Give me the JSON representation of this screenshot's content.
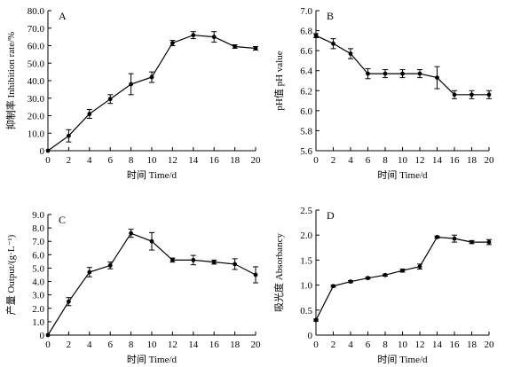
{
  "chart_data": [
    {
      "panel": "A",
      "type": "line",
      "xlabel": "时间  Time/d",
      "ylabel": "抑制率  Inhibition rate/%",
      "xlim": [
        0,
        20
      ],
      "ylim": [
        0,
        80
      ],
      "xticks": [
        0,
        2,
        4,
        6,
        8,
        10,
        12,
        14,
        16,
        18,
        20
      ],
      "yticks": [
        0,
        10,
        20,
        30,
        40,
        50,
        60,
        70,
        80
      ],
      "ytick_labels": [
        "0",
        "10.0",
        "20.0",
        "30.0",
        "40.0",
        "50.0",
        "60.0",
        "70.0",
        "80.0"
      ],
      "grid": false,
      "series": [
        {
          "x": [
            0,
            2,
            4,
            6,
            8,
            10,
            12,
            14,
            16,
            18,
            20
          ],
          "y": [
            0,
            8.5,
            21,
            29.5,
            38,
            42,
            61.5,
            66,
            65,
            59.5,
            58.5
          ],
          "err": [
            0,
            3.5,
            2.5,
            2.5,
            6,
            3,
            1.5,
            2,
            3,
            1,
            1
          ]
        }
      ]
    },
    {
      "panel": "B",
      "type": "line",
      "xlabel": "时间  Time/d",
      "ylabel": "pH值  pH value",
      "xlim": [
        0,
        20
      ],
      "ylim": [
        5.6,
        7.0
      ],
      "xticks": [
        0,
        2,
        4,
        6,
        8,
        10,
        12,
        14,
        16,
        18,
        20
      ],
      "yticks": [
        5.6,
        5.8,
        6.0,
        6.2,
        6.4,
        6.6,
        6.8,
        7.0
      ],
      "ytick_labels": [
        "5.6",
        "5.8",
        "6.0",
        "6.2",
        "6.4",
        "6.6",
        "6.8",
        "7.0"
      ],
      "grid": false,
      "series": [
        {
          "x": [
            0,
            2,
            4,
            6,
            8,
            10,
            12,
            14,
            16,
            18,
            20
          ],
          "y": [
            6.75,
            6.67,
            6.57,
            6.37,
            6.37,
            6.37,
            6.37,
            6.33,
            6.16,
            6.16,
            6.16
          ],
          "err": [
            0.02,
            0.05,
            0.05,
            0.05,
            0.04,
            0.04,
            0.04,
            0.11,
            0.04,
            0.04,
            0.04
          ]
        }
      ]
    },
    {
      "panel": "C",
      "type": "line",
      "xlabel": "时间  Time/d",
      "ylabel": "产量  Output/(g·L⁻¹)",
      "xlim": [
        0,
        20
      ],
      "ylim": [
        0,
        9
      ],
      "xticks": [
        0,
        2,
        4,
        6,
        8,
        10,
        12,
        14,
        16,
        18,
        20
      ],
      "yticks": [
        0,
        1,
        2,
        3,
        4,
        5,
        6,
        7,
        8,
        9
      ],
      "ytick_labels": [
        "0",
        "1.0",
        "2.0",
        "3.0",
        "4.0",
        "5.0",
        "6.0",
        "7.0",
        "8.0",
        "9.0"
      ],
      "grid": false,
      "series": [
        {
          "x": [
            0,
            2,
            4,
            6,
            8,
            10,
            12,
            14,
            16,
            18,
            20
          ],
          "y": [
            0,
            2.5,
            4.7,
            5.2,
            7.6,
            7.0,
            5.6,
            5.6,
            5.45,
            5.3,
            4.5
          ],
          "err": [
            0,
            0.3,
            0.35,
            0.25,
            0.3,
            0.65,
            0.15,
            0.35,
            0.15,
            0.4,
            0.6
          ]
        }
      ]
    },
    {
      "panel": "D",
      "type": "line",
      "xlabel": "时间  Time/d",
      "ylabel": "吸光度  Absorbancy",
      "xlim": [
        0,
        20
      ],
      "ylim": [
        0,
        2.5
      ],
      "xticks": [
        0,
        2,
        4,
        6,
        8,
        10,
        12,
        14,
        16,
        18,
        20
      ],
      "yticks": [
        0,
        0.5,
        1.0,
        1.5,
        2.0,
        2.5
      ],
      "ytick_labels": [
        "0",
        "0.5",
        "1.0",
        "1.5",
        "2.0",
        "2.5"
      ],
      "grid": false,
      "series": [
        {
          "x": [
            0,
            2,
            4,
            6,
            8,
            10,
            12,
            14,
            16,
            18,
            20
          ],
          "y": [
            0.3,
            0.98,
            1.07,
            1.14,
            1.2,
            1.29,
            1.37,
            1.96,
            1.93,
            1.86,
            1.86
          ],
          "err": [
            0.02,
            0.02,
            0.02,
            0.02,
            0.02,
            0.03,
            0.05,
            0.02,
            0.07,
            0.03,
            0.05
          ]
        }
      ]
    }
  ]
}
